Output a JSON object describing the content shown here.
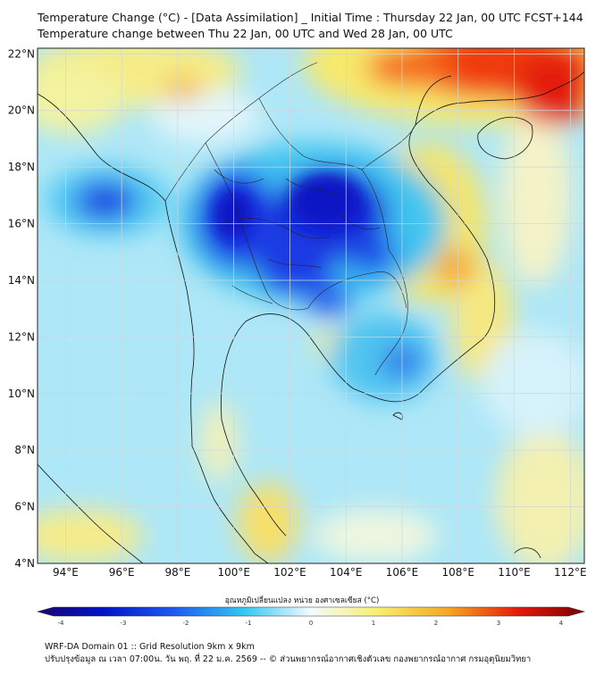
{
  "title": {
    "line1": "Temperature Change (°C) - [Data Assimilation] _ Initial Time : Thursday 22 Jan, 00 UTC FCST+144",
    "line2": "Temperature change between Thu 22 Jan, 00 UTC and Wed 28 Jan, 00 UTC"
  },
  "map": {
    "lon_range": [
      93,
      112.5
    ],
    "lat_range": [
      4,
      22.2
    ],
    "lon_ticks": [
      "94°E",
      "96°E",
      "98°E",
      "100°E",
      "102°E",
      "104°E",
      "106°E",
      "108°E",
      "110°E",
      "112°E"
    ],
    "lat_ticks": [
      "22°N",
      "20°N",
      "18°N",
      "16°N",
      "14°N",
      "12°N",
      "10°N",
      "8°N",
      "6°N",
      "4°N"
    ],
    "grid": true,
    "colors": {
      "strong_cooling": "#0a1fd6",
      "mild_cooling": "#4dd2f5",
      "neutral": "#f0f8ff",
      "mild_warming": "#f5e35a",
      "strong_warming": "#e81a08"
    }
  },
  "colorbar": {
    "label": "อุณหภูมิเปลี่ยนแปลง หน่วย องศาเซลเซียส (°C)",
    "ticks": [
      "-4",
      "-3",
      "-2",
      "-1",
      "0",
      "1",
      "2",
      "3",
      "4"
    ],
    "range": [
      -4,
      4
    ]
  },
  "footer": {
    "line1": "WRF-DA Domain 01 :: Grid Resolution 9km x 9km",
    "line2": "ปรับปรุงข้อมูล ณ เวลา 07:00น. วัน พฤ. ที่ 22 ม.ค. 2569 -- © ส่วนพยากรณ์อากาศเชิงตัวเลข กองพยากรณ์อากาศ กรมอุตุนิยมวิทยา"
  }
}
